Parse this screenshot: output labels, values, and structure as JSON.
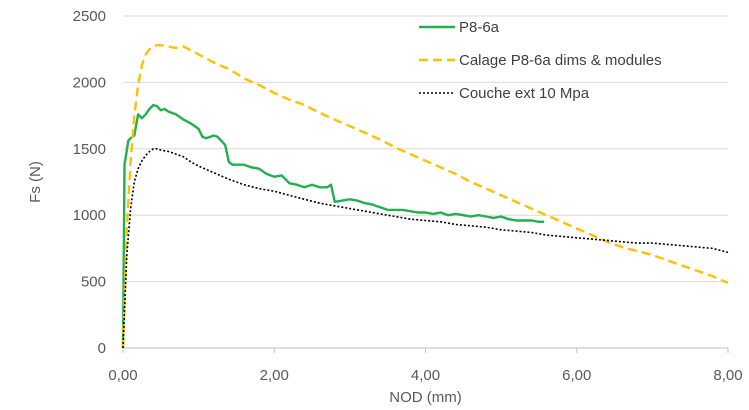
{
  "chart_data": {
    "type": "line",
    "title": "",
    "xlabel": "NOD (mm)",
    "ylabel": "Fs (N)",
    "xlim": [
      0,
      8
    ],
    "ylim": [
      0,
      2500
    ],
    "x_ticks": [
      0,
      2,
      4,
      6,
      8
    ],
    "x_tick_labels": [
      "0,00",
      "2,00",
      "4,00",
      "6,00",
      "8,00"
    ],
    "y_ticks": [
      0,
      500,
      1000,
      1500,
      2000,
      2500
    ],
    "y_tick_labels": [
      "0",
      "500",
      "1000",
      "1500",
      "2000",
      "2500"
    ],
    "grid": "horizontal",
    "legend_position": "top-right",
    "series": [
      {
        "name": "P8-6a",
        "color": "#21b050",
        "style": "solid",
        "x": [
          0,
          0.02,
          0.04,
          0.07,
          0.1,
          0.15,
          0.2,
          0.25,
          0.3,
          0.35,
          0.4,
          0.45,
          0.5,
          0.55,
          0.6,
          0.7,
          0.8,
          0.9,
          1.0,
          1.05,
          1.1,
          1.2,
          1.25,
          1.35,
          1.4,
          1.45,
          1.5,
          1.6,
          1.7,
          1.8,
          1.9,
          2.0,
          2.1,
          2.2,
          2.3,
          2.4,
          2.5,
          2.6,
          2.7,
          2.75,
          2.8,
          2.9,
          3.0,
          3.1,
          3.2,
          3.3,
          3.4,
          3.5,
          3.6,
          3.7,
          3.8,
          3.9,
          4.0,
          4.1,
          4.2,
          4.3,
          4.4,
          4.5,
          4.6,
          4.7,
          4.8,
          4.9,
          5.0,
          5.1,
          5.2,
          5.3,
          5.4,
          5.5,
          5.57
        ],
        "y": [
          0,
          1380,
          1450,
          1560,
          1580,
          1600,
          1760,
          1730,
          1760,
          1800,
          1830,
          1820,
          1790,
          1800,
          1780,
          1760,
          1720,
          1690,
          1650,
          1590,
          1580,
          1600,
          1590,
          1530,
          1400,
          1380,
          1380,
          1380,
          1360,
          1350,
          1310,
          1290,
          1300,
          1240,
          1230,
          1210,
          1230,
          1210,
          1210,
          1230,
          1100,
          1110,
          1120,
          1110,
          1090,
          1080,
          1060,
          1040,
          1040,
          1040,
          1030,
          1020,
          1020,
          1010,
          1020,
          1000,
          1010,
          1000,
          990,
          1000,
          990,
          980,
          990,
          970,
          960,
          960,
          960,
          950,
          950
        ]
      },
      {
        "name": "Calage P8-6a dims & modules",
        "color": "#ffc000",
        "style": "dashed",
        "x": [
          0,
          0.05,
          0.1,
          0.15,
          0.2,
          0.25,
          0.3,
          0.35,
          0.4,
          0.45,
          0.5,
          0.6,
          0.7,
          0.8,
          0.9,
          1.0,
          1.2,
          1.4,
          1.6,
          1.8,
          2.0,
          2.2,
          2.4,
          2.6,
          2.8,
          3.0,
          3.2,
          3.4,
          3.6,
          3.8,
          4.0,
          4.2,
          4.4,
          4.6,
          4.8,
          5.0,
          5.2,
          5.4,
          5.6,
          5.8,
          6.0,
          6.2,
          6.4,
          6.6,
          6.8,
          7.0,
          7.2,
          7.4,
          7.6,
          7.8,
          8.0
        ],
        "y": [
          0,
          900,
          1400,
          1750,
          1980,
          2130,
          2210,
          2250,
          2270,
          2280,
          2280,
          2270,
          2260,
          2270,
          2240,
          2210,
          2150,
          2100,
          2030,
          1980,
          1920,
          1870,
          1830,
          1770,
          1720,
          1670,
          1620,
          1570,
          1510,
          1460,
          1410,
          1360,
          1310,
          1250,
          1200,
          1150,
          1100,
          1050,
          1000,
          950,
          900,
          850,
          800,
          760,
          730,
          700,
          660,
          620,
          580,
          540,
          490
        ]
      },
      {
        "name": "Couche ext 10 Mpa",
        "color": "#000000",
        "style": "dotted",
        "x": [
          0,
          0.05,
          0.1,
          0.15,
          0.2,
          0.25,
          0.3,
          0.35,
          0.4,
          0.45,
          0.5,
          0.6,
          0.7,
          0.8,
          0.9,
          1.0,
          1.2,
          1.4,
          1.6,
          1.8,
          2.0,
          2.2,
          2.4,
          2.6,
          2.8,
          3.0,
          3.2,
          3.4,
          3.6,
          3.8,
          4.0,
          4.2,
          4.4,
          4.6,
          4.8,
          5.0,
          5.2,
          5.4,
          5.6,
          5.8,
          6.0,
          6.2,
          6.4,
          6.6,
          6.8,
          7.0,
          7.2,
          7.4,
          7.6,
          7.8,
          8.0
        ],
        "y": [
          0,
          700,
          1050,
          1250,
          1350,
          1410,
          1450,
          1480,
          1500,
          1500,
          1490,
          1480,
          1460,
          1440,
          1400,
          1370,
          1320,
          1270,
          1230,
          1200,
          1180,
          1150,
          1120,
          1090,
          1070,
          1050,
          1030,
          1010,
          990,
          970,
          960,
          950,
          930,
          920,
          910,
          890,
          880,
          870,
          850,
          840,
          830,
          820,
          810,
          800,
          790,
          790,
          780,
          770,
          760,
          750,
          720
        ]
      }
    ]
  }
}
